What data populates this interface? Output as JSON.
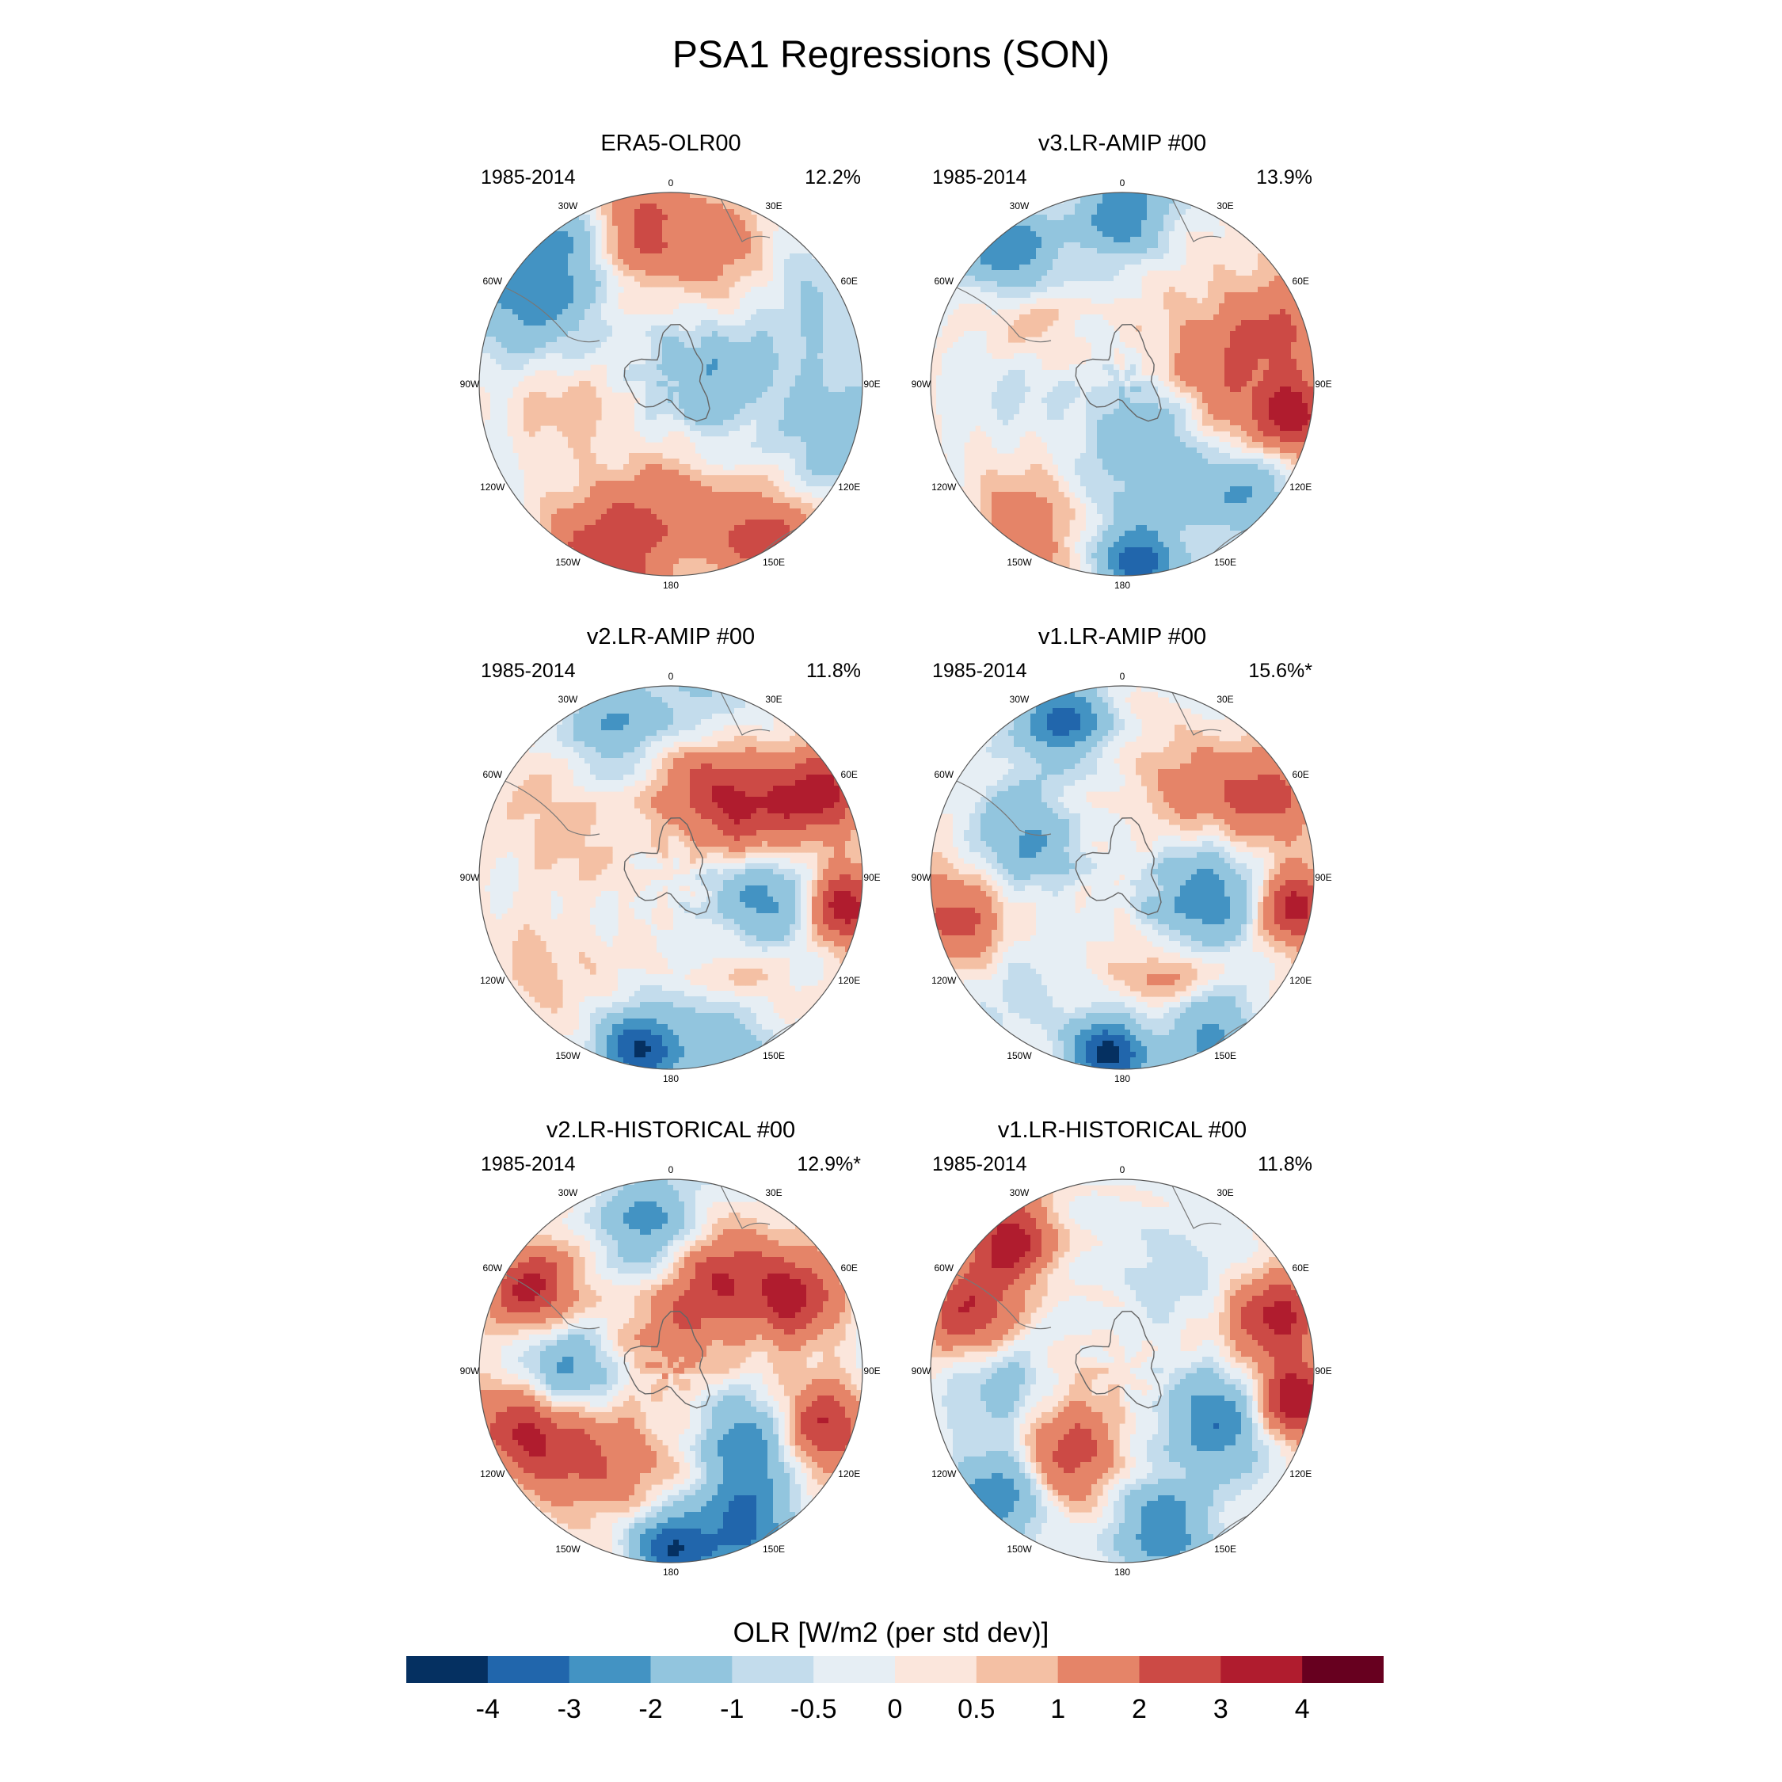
{
  "figure": {
    "title": "PSA1 Regressions (SON)"
  },
  "panels": [
    {
      "title": "ERA5-OLR00",
      "period": "1985-2014",
      "variance": "12.2%",
      "blobs": [
        [
          20,
          0.85,
          1.8,
          1.0,
          3.0
        ],
        [
          70,
          0.2,
          0.2,
          -1.8,
          2.0
        ],
        [
          60,
          0.9,
          2.1,
          -1.2,
          2.2
        ],
        [
          110,
          0.9,
          2.5,
          -1.6,
          2.0
        ],
        [
          150,
          0.95,
          2.6,
          2.5,
          2.3
        ],
        [
          200,
          0.95,
          2.3,
          2.5,
          2.0
        ],
        [
          300,
          0.9,
          1.9,
          -2.2,
          1.8
        ],
        [
          345,
          0.85,
          1.0,
          2.5,
          2.6
        ],
        [
          10,
          0.65,
          1.5,
          1.2,
          2.0
        ],
        [
          330,
          0.9,
          0.9,
          -1.8,
          2.2
        ],
        [
          180,
          0.6,
          0.6,
          0.9,
          2.2
        ],
        [
          260,
          0.55,
          0.7,
          0.8,
          2.2
        ]
      ]
    },
    {
      "title": "v3.LR-AMIP  #00",
      "period": "1985-2014",
      "variance": "13.9%",
      "blobs": [
        [
          0,
          0.9,
          0.7,
          -2.6,
          2.8
        ],
        [
          320,
          0.9,
          0.5,
          -3.2,
          2.8
        ],
        [
          100,
          0.92,
          0.35,
          3.4,
          3.2
        ],
        [
          70,
          0.85,
          0.5,
          2.2,
          2.6
        ],
        [
          150,
          0.35,
          0.6,
          -2.2,
          2.0
        ],
        [
          175,
          0.92,
          0.35,
          -3.6,
          3.2
        ],
        [
          130,
          0.85,
          0.45,
          -2.0,
          2.6
        ],
        [
          215,
          0.9,
          0.5,
          2.0,
          2.6
        ],
        [
          70,
          0.45,
          0.5,
          1.5,
          2.4
        ],
        [
          300,
          0.65,
          0.5,
          1.0,
          2.2
        ],
        [
          115,
          0.55,
          0.45,
          1.5,
          2.4
        ],
        [
          270,
          0.6,
          0.6,
          -0.7,
          2.0
        ]
      ]
    },
    {
      "title": "v2.LR-AMIP  #00",
      "period": "1985-2014",
      "variance": "11.8%",
      "blobs": [
        [
          100,
          0.92,
          0.3,
          3.8,
          3.4
        ],
        [
          60,
          0.9,
          0.35,
          3.4,
          3.0
        ],
        [
          50,
          0.55,
          0.5,
          2.5,
          2.6
        ],
        [
          20,
          0.5,
          0.5,
          2.0,
          2.6
        ],
        [
          105,
          0.5,
          0.5,
          -2.4,
          2.4
        ],
        [
          190,
          0.92,
          0.35,
          -3.8,
          3.2
        ],
        [
          160,
          0.9,
          0.4,
          -2.0,
          2.8
        ],
        [
          340,
          0.85,
          0.5,
          -1.8,
          2.6
        ],
        [
          140,
          0.65,
          0.5,
          0.9,
          2.4
        ],
        [
          300,
          0.6,
          0.6,
          0.7,
          2.2
        ],
        [
          240,
          0.85,
          0.5,
          0.6,
          2.2
        ],
        [
          10,
          0.92,
          0.5,
          -1.2,
          2.6
        ]
      ]
    },
    {
      "title": "v1.LR-AMIP  #00",
      "period": "1985-2014",
      "variance": "15.6%*",
      "blobs": [
        [
          100,
          0.92,
          0.3,
          3.8,
          3.4
        ],
        [
          60,
          0.85,
          0.4,
          2.2,
          2.6
        ],
        [
          340,
          0.88,
          0.4,
          -3.5,
          3.0
        ],
        [
          110,
          0.45,
          0.5,
          -3.0,
          2.4
        ],
        [
          185,
          0.92,
          0.3,
          -4.2,
          3.4
        ],
        [
          150,
          0.9,
          0.4,
          -2.8,
          2.8
        ],
        [
          150,
          0.6,
          0.5,
          2.0,
          2.6
        ],
        [
          290,
          0.55,
          0.6,
          -2.0,
          2.4
        ],
        [
          255,
          0.9,
          0.45,
          2.5,
          2.6
        ],
        [
          30,
          0.6,
          0.5,
          1.2,
          2.4
        ],
        [
          220,
          0.85,
          0.5,
          -0.8,
          2.4
        ]
      ]
    },
    {
      "title": "v2.LR-HISTORICAL  #00",
      "period": "1985-2014",
      "variance": "12.9%*",
      "blobs": [
        [
          60,
          0.75,
          0.45,
          3.4,
          3.0
        ],
        [
          110,
          0.85,
          0.4,
          3.0,
          3.0
        ],
        [
          300,
          0.85,
          0.55,
          3.5,
          3.0
        ],
        [
          250,
          0.85,
          0.45,
          2.5,
          2.8
        ],
        [
          350,
          0.8,
          0.45,
          -2.2,
          2.6
        ],
        [
          180,
          0.92,
          0.35,
          -4.0,
          3.2
        ],
        [
          155,
          0.9,
          0.4,
          -3.0,
          2.8
        ],
        [
          135,
          0.55,
          0.55,
          -2.5,
          2.6
        ],
        [
          270,
          0.55,
          0.55,
          -2.2,
          2.6
        ],
        [
          200,
          0.55,
          0.5,
          1.2,
          2.4
        ],
        [
          30,
          0.55,
          0.5,
          2.5,
          2.6
        ],
        [
          0,
          0.2,
          0.5,
          1.5,
          2.4
        ],
        [
          230,
          0.7,
          0.5,
          2.0,
          2.4
        ]
      ]
    },
    {
      "title": "v1.LR-HISTORICAL  #00",
      "period": "1985-2014",
      "variance": "11.8%",
      "blobs": [
        [
          70,
          0.85,
          0.4,
          3.4,
          3.0
        ],
        [
          100,
          0.92,
          0.3,
          4.0,
          3.4
        ],
        [
          320,
          0.9,
          0.45,
          3.5,
          3.0
        ],
        [
          290,
          0.85,
          0.45,
          3.0,
          2.8
        ],
        [
          120,
          0.55,
          0.6,
          -2.8,
          2.6
        ],
        [
          165,
          0.85,
          0.45,
          -3.0,
          2.8
        ],
        [
          225,
          0.9,
          0.4,
          -3.0,
          2.8
        ],
        [
          265,
          0.6,
          0.5,
          -1.8,
          2.4
        ],
        [
          210,
          0.55,
          0.5,
          2.0,
          2.6
        ],
        [
          20,
          0.6,
          0.5,
          -0.8,
          2.2
        ],
        [
          240,
          0.4,
          0.5,
          1.0,
          2.2
        ]
      ]
    }
  ],
  "map": {
    "projection": "south-polar-stereographic",
    "longitude_labels": [
      "0",
      "30E",
      "60E",
      "90E",
      "120E",
      "150E",
      "180",
      "150W",
      "120W",
      "90W",
      "60W",
      "30W"
    ]
  },
  "colorbar": {
    "title": "OLR [W/m2 (per std dev)]",
    "levels": [
      "-4",
      "-3",
      "-2",
      "-1",
      "-0.5",
      "0",
      "0.5",
      "1",
      "2",
      "3",
      "4"
    ],
    "level_values": [
      -4,
      -3,
      -2,
      -1,
      -0.5,
      0,
      0.5,
      1,
      2,
      3,
      4
    ],
    "colors": [
      "#053061",
      "#2166ac",
      "#4393c3",
      "#92c5de",
      "#c3dcec",
      "#e6eef4",
      "#fbe6dc",
      "#f4c0a4",
      "#e58468",
      "#cc4a45",
      "#b01c2e",
      "#67001f"
    ]
  }
}
